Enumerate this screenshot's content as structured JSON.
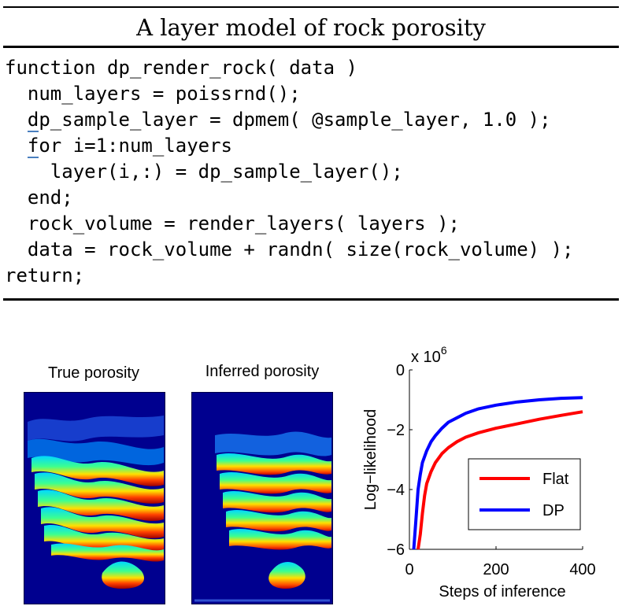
{
  "heading": "A layer model of rock porosity",
  "code": {
    "line1": "function dp_render_rock( data )",
    "line2": "  num_layers = poissrnd();",
    "line3_pre": "  ",
    "line3_u": "d",
    "line3_post": "p_sample_layer = dpmem( @sample_layer, 1.0 );",
    "line4_pre": "  ",
    "line4_u": "f",
    "line4_post": "or i=1:num_layers",
    "line5": "    layer(i,:) = dp_sample_layer();",
    "line6": "  end;",
    "line7": "  rock_volume = render_layers( layers );",
    "line8": "  data = rock_volume + randn( size(rock_volume) );",
    "line9": "return;"
  },
  "panels": {
    "true_title": "True porosity",
    "inferred_title": "Inferred porosity"
  },
  "colors": {
    "flat": "#ff0000",
    "dp": "#0000ff",
    "volume_bg": "#00008f"
  },
  "chart_data": {
    "type": "line",
    "xlabel": "Steps of inference",
    "ylabel": "Log−likelihood",
    "scale_label": "x 10",
    "scale_exp": "6",
    "xlim": [
      0,
      400
    ],
    "ylim": [
      -6,
      0
    ],
    "xticks": [
      "0",
      "200",
      "400"
    ],
    "yticks": [
      "0",
      "−2",
      "−4",
      "−6"
    ],
    "legend_position": "inside-right",
    "series": [
      {
        "name": "Flat",
        "color": "#ff0000",
        "x": [
          20,
          25,
          30,
          35,
          40,
          50,
          60,
          75,
          90,
          110,
          130,
          160,
          200,
          250,
          300,
          350,
          400
        ],
        "y": [
          -6.0,
          -5.5,
          -4.8,
          -4.2,
          -3.8,
          -3.4,
          -3.1,
          -2.8,
          -2.6,
          -2.4,
          -2.25,
          -2.1,
          -1.95,
          -1.8,
          -1.65,
          -1.52,
          -1.4
        ]
      },
      {
        "name": "DP",
        "color": "#0000ff",
        "x": [
          10,
          15,
          20,
          25,
          30,
          40,
          50,
          60,
          75,
          90,
          110,
          130,
          160,
          200,
          250,
          300,
          350,
          400
        ],
        "y": [
          -6.0,
          -5.0,
          -4.0,
          -3.5,
          -3.1,
          -2.7,
          -2.4,
          -2.2,
          -1.95,
          -1.75,
          -1.6,
          -1.45,
          -1.3,
          -1.18,
          -1.07,
          -1.0,
          -0.95,
          -0.93
        ]
      }
    ]
  }
}
